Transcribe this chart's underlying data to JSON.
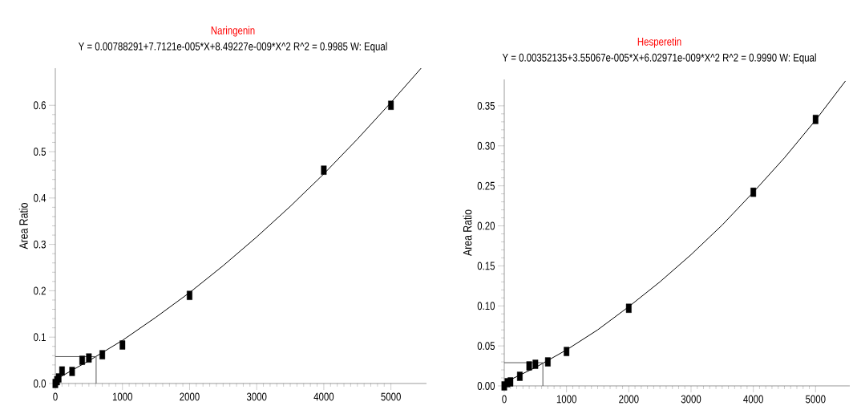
{
  "chart_data": [
    {
      "type": "scatter",
      "title": "Naringenin",
      "subtitle": "Y = 0.00788291+7.7121e-005*X+8.49227e-009*X^2   R^2 = 0.9985   W: Equal",
      "ylabel": "Area Ratio",
      "xlim": [
        0,
        5530
      ],
      "ylim": [
        0,
        0.68
      ],
      "xticks": [
        0,
        1000,
        2000,
        3000,
        4000,
        5000
      ],
      "yticks": [
        {
          "value": 0,
          "label": "0.0"
        },
        0.1,
        0.2,
        0.3,
        0.4,
        0.5,
        0.6
      ],
      "series": [
        {
          "type": "scatter",
          "marker": "square",
          "color": "#000000",
          "x": [
            0,
            10,
            25,
            50,
            100,
            250,
            400,
            500,
            700,
            1000,
            2000,
            4000,
            5000
          ],
          "values": [
            0.0,
            null,
            0.006,
            0.012,
            0.027,
            0.026,
            0.05,
            0.055,
            0.062,
            0.083,
            0.19,
            0.46,
            0.6
          ]
        },
        {
          "type": "line",
          "marker": "none",
          "color": "#000000",
          "x": [
            0,
            500,
            1000,
            1500,
            2000,
            2500,
            3000,
            3500,
            4000,
            4500,
            5000,
            5450
          ],
          "values": [
            0.008,
            0.049,
            0.093,
            0.143,
            0.196,
            0.254,
            0.316,
            0.382,
            0.452,
            0.527,
            0.606,
            0.68
          ]
        },
        {
          "type": "line",
          "marker": "none",
          "color": "#555555",
          "x": [
            0,
            608,
            608
          ],
          "values": [
            0.058,
            0.058,
            0
          ]
        }
      ]
    },
    {
      "type": "scatter",
      "title": "Hesperetin",
      "subtitle": "Y = 0.00352135+3.55067e-005*X+6.02971e-009*X^2   R^2 = 0.9990   W: Equal",
      "ylabel": "Area Ratio",
      "xlim": [
        0,
        5550
      ],
      "ylim": [
        0,
        0.383
      ],
      "xticks": [
        0,
        1000,
        2000,
        3000,
        4000,
        5000
      ],
      "yticks": [
        {
          "value": 0,
          "label": "0.00"
        },
        0.05,
        {
          "value": 0.1,
          "label": "0.10"
        },
        0.15,
        {
          "value": 0.2,
          "label": "0.20"
        },
        0.25,
        {
          "value": 0.3,
          "label": "0.30"
        },
        0.35
      ],
      "series": [
        {
          "type": "scatter",
          "marker": "square",
          "color": "#000000",
          "x": [
            0,
            10,
            25,
            50,
            100,
            250,
            400,
            500,
            700,
            1000,
            2000,
            4000,
            5000
          ],
          "values": [
            0.0,
            null,
            null,
            0.004,
            0.005,
            0.012,
            0.025,
            0.027,
            0.03,
            0.043,
            0.097,
            0.242,
            0.333
          ]
        },
        {
          "type": "line",
          "marker": "none",
          "color": "#000000",
          "x": [
            0,
            500,
            1000,
            1500,
            2000,
            2500,
            3000,
            3500,
            4000,
            4500,
            5000,
            5480
          ],
          "values": [
            0.004,
            0.023,
            0.045,
            0.07,
            0.099,
            0.13,
            0.164,
            0.201,
            0.242,
            0.285,
            0.332,
            0.381
          ]
        },
        {
          "type": "line",
          "marker": "none",
          "color": "#555555",
          "x": [
            0,
            620,
            620
          ],
          "values": [
            0.029,
            0.029,
            0
          ]
        }
      ]
    }
  ]
}
